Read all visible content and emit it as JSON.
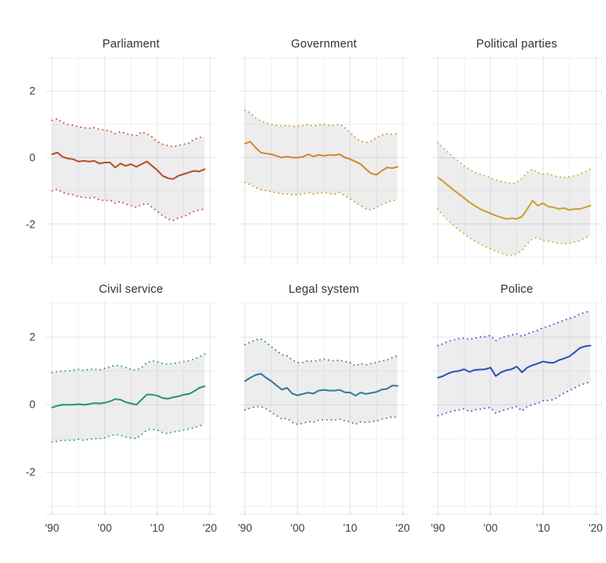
{
  "figure": {
    "background": "#ffffff",
    "grid_major_color": "#e4e4e7",
    "grid_minor_color": "#f1f1f3",
    "band_fill": "rgba(140,140,150,0.16)",
    "axis_line_color": "#e7e7ea",
    "tick_mark_color": "#d9d9dc",
    "axis_text_color": "#3d3d3d",
    "title_text_color": "#323232"
  },
  "axes": {
    "y_ticks": [
      "2",
      "0",
      "-2"
    ],
    "x_ticks": [
      "'90",
      "'00",
      "'10",
      "'20"
    ],
    "x_domain": [
      1988.8,
      2021.2
    ],
    "y_domain": [
      -3.25,
      3.05
    ]
  },
  "chart_data": {
    "type": "line",
    "layout": "small multiples, 2 rows x 3 columns, shared axes",
    "grid": "on",
    "x_gridlines_major": [
      1990,
      2000,
      2010,
      2020
    ],
    "x_gridlines_minor": [
      1995,
      2005,
      2015
    ],
    "y_gridlines_major": [
      2,
      0,
      -2
    ],
    "y_gridlines_minor": [
      3,
      1,
      -1,
      -3
    ],
    "x": [
      1990,
      1991,
      1992,
      1993,
      1994,
      1995,
      1996,
      1997,
      1998,
      1999,
      2000,
      2001,
      2002,
      2003,
      2004,
      2005,
      2006,
      2007,
      2008,
      2009,
      2010,
      2011,
      2012,
      2013,
      2014,
      2015,
      2016,
      2017,
      2018,
      2019
    ],
    "band_note": "grey ribbon = uncertainty interval, dotted colored edges",
    "panels": [
      {
        "title": "Parliament",
        "color": "#b5502c",
        "dot_color": "#c94f26",
        "estimate": [
          0.1,
          0.15,
          0.02,
          -0.03,
          -0.05,
          -0.12,
          -0.1,
          -0.12,
          -0.1,
          -0.18,
          -0.15,
          -0.15,
          -0.3,
          -0.18,
          -0.25,
          -0.2,
          -0.28,
          -0.2,
          -0.12,
          -0.25,
          -0.38,
          -0.55,
          -0.62,
          -0.65,
          -0.55,
          -0.5,
          -0.45,
          -0.4,
          -0.42,
          -0.35
        ],
        "upper": [
          1.12,
          1.17,
          1.05,
          1.0,
          0.97,
          0.93,
          0.9,
          0.88,
          0.9,
          0.85,
          0.83,
          0.8,
          0.72,
          0.78,
          0.72,
          0.69,
          0.66,
          0.77,
          0.72,
          0.62,
          0.48,
          0.4,
          0.36,
          0.33,
          0.36,
          0.4,
          0.44,
          0.55,
          0.6,
          0.64
        ],
        "lower": [
          -1.0,
          -0.95,
          -1.05,
          -1.1,
          -1.12,
          -1.18,
          -1.2,
          -1.22,
          -1.2,
          -1.28,
          -1.3,
          -1.28,
          -1.38,
          -1.32,
          -1.4,
          -1.45,
          -1.5,
          -1.42,
          -1.38,
          -1.5,
          -1.62,
          -1.75,
          -1.85,
          -1.9,
          -1.82,
          -1.78,
          -1.7,
          -1.62,
          -1.58,
          -1.55
        ]
      },
      {
        "title": "Government",
        "color": "#d0892f",
        "dot_color": "#d8932b",
        "estimate": [
          0.42,
          0.48,
          0.3,
          0.15,
          0.12,
          0.1,
          0.05,
          0.0,
          0.03,
          0.0,
          0.0,
          0.02,
          0.1,
          0.03,
          0.08,
          0.05,
          0.08,
          0.07,
          0.1,
          0.0,
          -0.05,
          -0.12,
          -0.2,
          -0.35,
          -0.48,
          -0.52,
          -0.4,
          -0.3,
          -0.32,
          -0.28
        ],
        "upper": [
          1.42,
          1.35,
          1.2,
          1.1,
          1.05,
          1.0,
          0.97,
          0.95,
          0.97,
          0.94,
          0.95,
          0.96,
          1.0,
          0.95,
          0.98,
          1.0,
          0.97,
          0.98,
          1.0,
          0.9,
          0.75,
          0.6,
          0.5,
          0.45,
          0.5,
          0.6,
          0.68,
          0.72,
          0.7,
          0.72
        ],
        "lower": [
          -0.75,
          -0.82,
          -0.9,
          -0.97,
          -1.0,
          -1.03,
          -1.06,
          -1.1,
          -1.1,
          -1.12,
          -1.12,
          -1.1,
          -1.05,
          -1.1,
          -1.07,
          -1.05,
          -1.08,
          -1.1,
          -1.05,
          -1.15,
          -1.25,
          -1.35,
          -1.45,
          -1.55,
          -1.58,
          -1.5,
          -1.42,
          -1.35,
          -1.3,
          -1.28
        ]
      },
      {
        "title": "Political parties",
        "color": "#c9a02d",
        "dot_color": "#d4aa2a",
        "estimate": [
          -0.6,
          -0.72,
          -0.85,
          -0.98,
          -1.1,
          -1.22,
          -1.35,
          -1.45,
          -1.55,
          -1.62,
          -1.68,
          -1.75,
          -1.8,
          -1.85,
          -1.83,
          -1.85,
          -1.78,
          -1.55,
          -1.3,
          -1.45,
          -1.38,
          -1.48,
          -1.5,
          -1.55,
          -1.52,
          -1.58,
          -1.55,
          -1.55,
          -1.5,
          -1.45
        ],
        "upper": [
          0.45,
          0.3,
          0.15,
          0.0,
          -0.12,
          -0.25,
          -0.35,
          -0.45,
          -0.5,
          -0.55,
          -0.6,
          -0.68,
          -0.72,
          -0.75,
          -0.78,
          -0.75,
          -0.62,
          -0.45,
          -0.35,
          -0.45,
          -0.5,
          -0.48,
          -0.55,
          -0.58,
          -0.6,
          -0.58,
          -0.55,
          -0.5,
          -0.42,
          -0.35
        ],
        "lower": [
          -1.55,
          -1.75,
          -1.9,
          -2.05,
          -2.18,
          -2.3,
          -2.42,
          -2.52,
          -2.6,
          -2.68,
          -2.75,
          -2.82,
          -2.88,
          -2.93,
          -2.95,
          -2.9,
          -2.8,
          -2.6,
          -2.45,
          -2.42,
          -2.5,
          -2.52,
          -2.55,
          -2.58,
          -2.6,
          -2.58,
          -2.55,
          -2.5,
          -2.42,
          -2.35
        ]
      },
      {
        "title": "Civil service",
        "color": "#27985f",
        "dot_color": "#2aa06a",
        "estimate": [
          -0.08,
          -0.03,
          0.0,
          0.0,
          0.0,
          0.02,
          0.0,
          0.02,
          0.05,
          0.04,
          0.06,
          0.1,
          0.17,
          0.15,
          0.08,
          0.04,
          0.0,
          0.15,
          0.3,
          0.3,
          0.27,
          0.2,
          0.18,
          0.22,
          0.25,
          0.3,
          0.32,
          0.4,
          0.5,
          0.55
        ],
        "upper": [
          0.95,
          0.98,
          1.0,
          1.0,
          1.02,
          1.05,
          1.02,
          1.05,
          1.05,
          1.03,
          1.08,
          1.12,
          1.17,
          1.15,
          1.1,
          1.05,
          1.02,
          1.1,
          1.25,
          1.3,
          1.27,
          1.22,
          1.2,
          1.22,
          1.25,
          1.28,
          1.3,
          1.35,
          1.42,
          1.5
        ],
        "lower": [
          -1.1,
          -1.08,
          -1.05,
          -1.05,
          -1.05,
          -1.02,
          -1.05,
          -1.02,
          -1.0,
          -1.0,
          -0.98,
          -0.92,
          -0.88,
          -0.9,
          -0.95,
          -0.98,
          -1.0,
          -0.88,
          -0.75,
          -0.72,
          -0.75,
          -0.82,
          -0.85,
          -0.8,
          -0.78,
          -0.75,
          -0.72,
          -0.68,
          -0.62,
          -0.58
        ]
      },
      {
        "title": "Legal system",
        "color": "#31799e",
        "dot_color": "#377ca3",
        "estimate": [
          0.7,
          0.8,
          0.88,
          0.92,
          0.8,
          0.7,
          0.57,
          0.45,
          0.5,
          0.33,
          0.28,
          0.32,
          0.36,
          0.33,
          0.42,
          0.44,
          0.42,
          0.42,
          0.44,
          0.37,
          0.36,
          0.27,
          0.36,
          0.32,
          0.35,
          0.38,
          0.45,
          0.47,
          0.57,
          0.56
        ],
        "upper": [
          1.78,
          1.85,
          1.92,
          1.95,
          1.85,
          1.72,
          1.6,
          1.48,
          1.45,
          1.32,
          1.25,
          1.25,
          1.3,
          1.28,
          1.32,
          1.35,
          1.32,
          1.3,
          1.32,
          1.28,
          1.25,
          1.15,
          1.22,
          1.18,
          1.22,
          1.25,
          1.3,
          1.32,
          1.4,
          1.45
        ],
        "lower": [
          -0.15,
          -0.1,
          -0.06,
          -0.05,
          -0.12,
          -0.22,
          -0.32,
          -0.42,
          -0.4,
          -0.52,
          -0.58,
          -0.55,
          -0.5,
          -0.52,
          -0.45,
          -0.44,
          -0.45,
          -0.45,
          -0.42,
          -0.48,
          -0.5,
          -0.58,
          -0.5,
          -0.52,
          -0.5,
          -0.48,
          -0.42,
          -0.4,
          -0.35,
          -0.38
        ]
      },
      {
        "title": "Police",
        "color": "#2b51be",
        "dot_color": "#4553cd",
        "estimate": [
          0.8,
          0.85,
          0.93,
          0.98,
          1.0,
          1.05,
          0.97,
          1.03,
          1.04,
          1.05,
          1.1,
          0.85,
          0.96,
          1.02,
          1.05,
          1.13,
          0.96,
          1.1,
          1.17,
          1.22,
          1.28,
          1.25,
          1.24,
          1.32,
          1.37,
          1.43,
          1.55,
          1.68,
          1.73,
          1.75
        ],
        "upper": [
          1.75,
          1.8,
          1.88,
          1.92,
          1.95,
          1.97,
          1.93,
          1.97,
          2.0,
          2.02,
          2.05,
          1.9,
          1.98,
          2.02,
          2.06,
          2.1,
          2.02,
          2.1,
          2.15,
          2.2,
          2.28,
          2.32,
          2.38,
          2.44,
          2.5,
          2.55,
          2.6,
          2.68,
          2.73,
          2.78
        ],
        "lower": [
          -0.32,
          -0.28,
          -0.22,
          -0.18,
          -0.15,
          -0.12,
          -0.2,
          -0.15,
          -0.13,
          -0.1,
          -0.08,
          -0.25,
          -0.18,
          -0.14,
          -0.1,
          -0.05,
          -0.18,
          -0.05,
          0.0,
          0.05,
          0.12,
          0.13,
          0.15,
          0.25,
          0.35,
          0.42,
          0.5,
          0.58,
          0.63,
          0.68
        ]
      }
    ]
  }
}
